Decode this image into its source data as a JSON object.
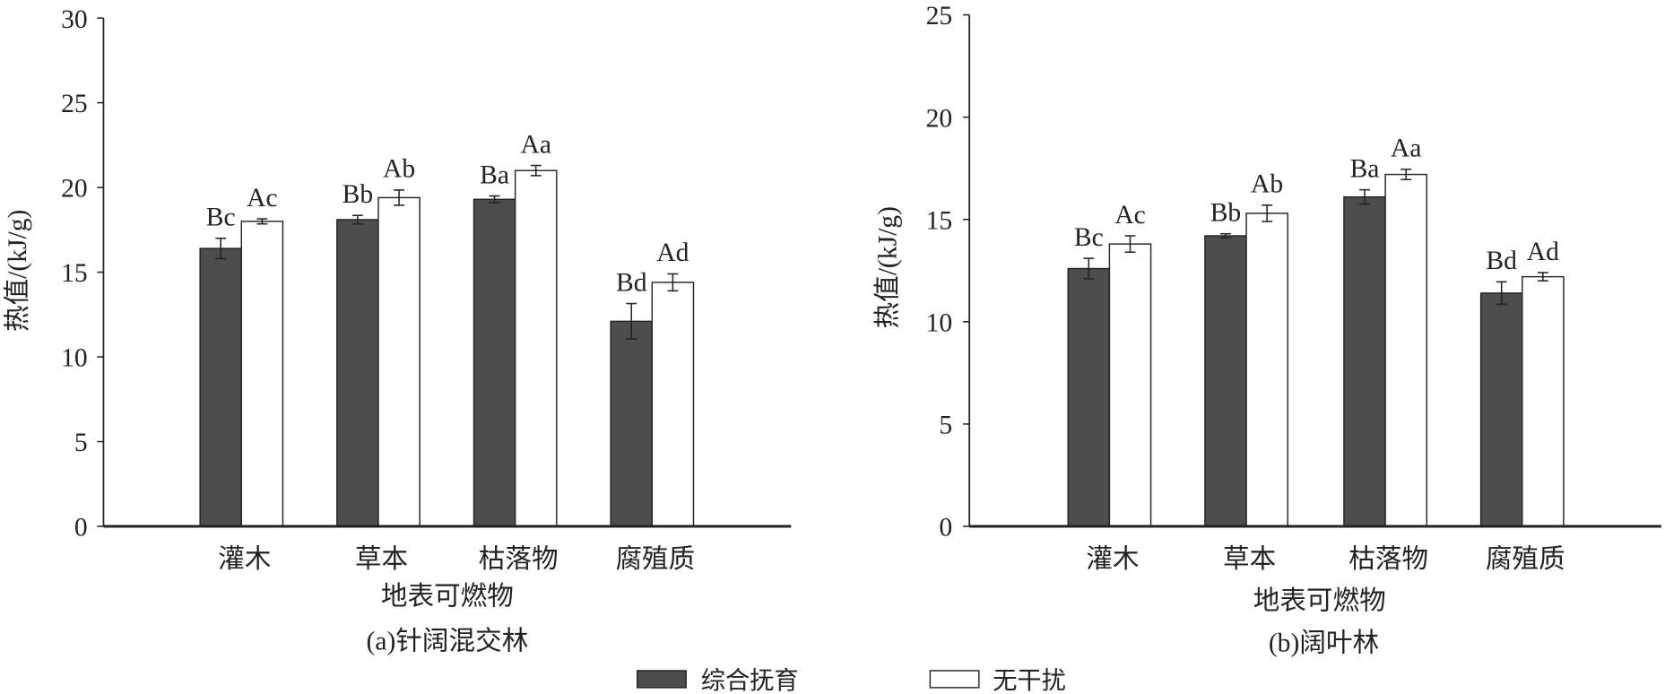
{
  "legend": {
    "placement": "bottom-center",
    "items": [
      {
        "label": "综合抚育",
        "color": "#4d4d4d"
      },
      {
        "label": "无干扰",
        "color": "#ffffff"
      }
    ]
  },
  "chart_data": [
    {
      "type": "bar",
      "caption": "(a)针阔混交林",
      "xlabel": "地表可燃物",
      "ylabel": "热值/(kJ/g)",
      "categories": [
        "灌木",
        "草本",
        "枯落物",
        "腐殖质"
      ],
      "ylim": [
        0,
        30
      ],
      "yticks": [
        0,
        5,
        10,
        15,
        20,
        25,
        30
      ],
      "grid": false,
      "series": [
        {
          "name": "综合抚育",
          "color": "#4d4d4d",
          "values": [
            16.4,
            18.1,
            19.3,
            12.1
          ],
          "errors": [
            0.6,
            0.25,
            0.2,
            1.05
          ],
          "labels": [
            "Bc",
            "Bb",
            "Ba",
            "Bd"
          ]
        },
        {
          "name": "无干扰",
          "color": "#ffffff",
          "values": [
            18.0,
            19.4,
            21.0,
            14.4
          ],
          "errors": [
            0.15,
            0.45,
            0.3,
            0.5
          ],
          "labels": [
            "Ac",
            "Ab",
            "Aa",
            "Ad"
          ]
        }
      ]
    },
    {
      "type": "bar",
      "caption": "(b)阔叶林",
      "xlabel": "地表可燃物",
      "ylabel": "热值/(kJ/g)",
      "categories": [
        "灌木",
        "草本",
        "枯落物",
        "腐殖质"
      ],
      "ylim": [
        0,
        25
      ],
      "yticks": [
        0,
        5,
        10,
        15,
        20,
        25
      ],
      "grid": false,
      "series": [
        {
          "name": "综合抚育",
          "color": "#4d4d4d",
          "values": [
            12.6,
            14.2,
            16.1,
            11.4
          ],
          "errors": [
            0.5,
            0.1,
            0.35,
            0.55
          ],
          "labels": [
            "Bc",
            "Bb",
            "Ba",
            "Bd"
          ]
        },
        {
          "name": "无干扰",
          "color": "#ffffff",
          "values": [
            13.8,
            15.3,
            17.2,
            12.2
          ],
          "errors": [
            0.4,
            0.4,
            0.25,
            0.2
          ],
          "labels": [
            "Ac",
            "Ab",
            "Aa",
            "Ad"
          ]
        }
      ]
    }
  ]
}
